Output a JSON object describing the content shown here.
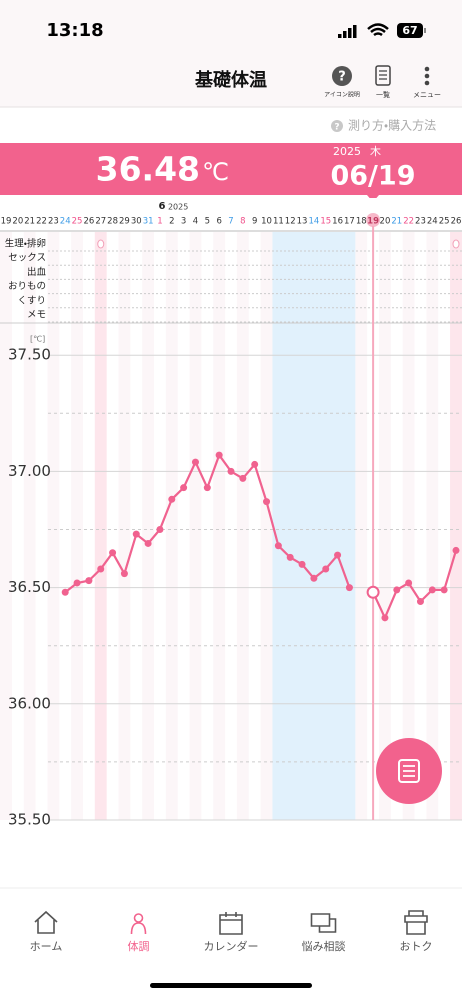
{
  "status_bar": {
    "time": "13:18",
    "battery": "67"
  },
  "header": {
    "title": "基礎体温",
    "icons": [
      {
        "glyph": "?",
        "label": "アイコン説明"
      },
      {
        "label": "一覧"
      },
      {
        "label": "メニュー"
      }
    ]
  },
  "link": {
    "glyph": "?",
    "text": "測り方・購入方法"
  },
  "banner": {
    "temperature": "36.48",
    "unit": "℃",
    "year": "2025",
    "weekday": "木",
    "date": "06/19"
  },
  "chart_data": {
    "type": "line",
    "month_label": "6",
    "year_label": "2025",
    "categories": [
      "19",
      "20",
      "21",
      "22",
      "23",
      "24",
      "25",
      "26",
      "27",
      "28",
      "29",
      "30",
      "31",
      "1",
      "2",
      "3",
      "4",
      "5",
      "6",
      "7",
      "8",
      "9",
      "10",
      "11",
      "12",
      "13",
      "14",
      "15",
      "16",
      "17",
      "18",
      "19",
      "20",
      "21",
      "22",
      "23",
      "24",
      "25",
      "26"
    ],
    "saturdays": [
      5,
      12,
      19,
      26,
      33
    ],
    "sundays": [
      6,
      13,
      20,
      27,
      34
    ],
    "saturday_color": "#3d9be6",
    "sunday_color": "#f0508a",
    "row_labels": [
      "生理・排卵",
      "セックス",
      "出血",
      "おりもの",
      "くすり",
      "メモ"
    ],
    "period_marks": [
      8,
      38
    ],
    "fertile_range": [
      23,
      29
    ],
    "selected_index": 31,
    "y_unit_label": "[℃]",
    "values": [
      null,
      null,
      null,
      null,
      null,
      36.48,
      36.52,
      36.53,
      36.58,
      36.65,
      36.56,
      36.73,
      36.69,
      36.75,
      36.88,
      36.93,
      37.04,
      36.93,
      37.07,
      37.0,
      36.97,
      37.03,
      36.87,
      36.68,
      36.63,
      36.6,
      36.54,
      36.58,
      36.64,
      36.5,
      null,
      36.48,
      36.37,
      36.49,
      36.52,
      36.44,
      36.49,
      36.49,
      36.66
    ],
    "color": "#f0628f",
    "ylim": [
      35.5,
      37.63
    ],
    "yticks": [
      {
        "value": 35.5,
        "label": "35.50"
      },
      {
        "value": 36.0,
        "label": "36.00"
      },
      {
        "value": 36.5,
        "label": "36.50"
      },
      {
        "value": 37.0,
        "label": "37.00"
      },
      {
        "value": 37.5,
        "label": "37.50"
      }
    ],
    "minor_yticks": [
      35.75,
      36.25,
      36.75,
      37.25
    ]
  },
  "nav": {
    "items": [
      "ホーム",
      "体調",
      "カレンダー",
      "悩み相談",
      "おトク"
    ],
    "active_index": 1
  }
}
